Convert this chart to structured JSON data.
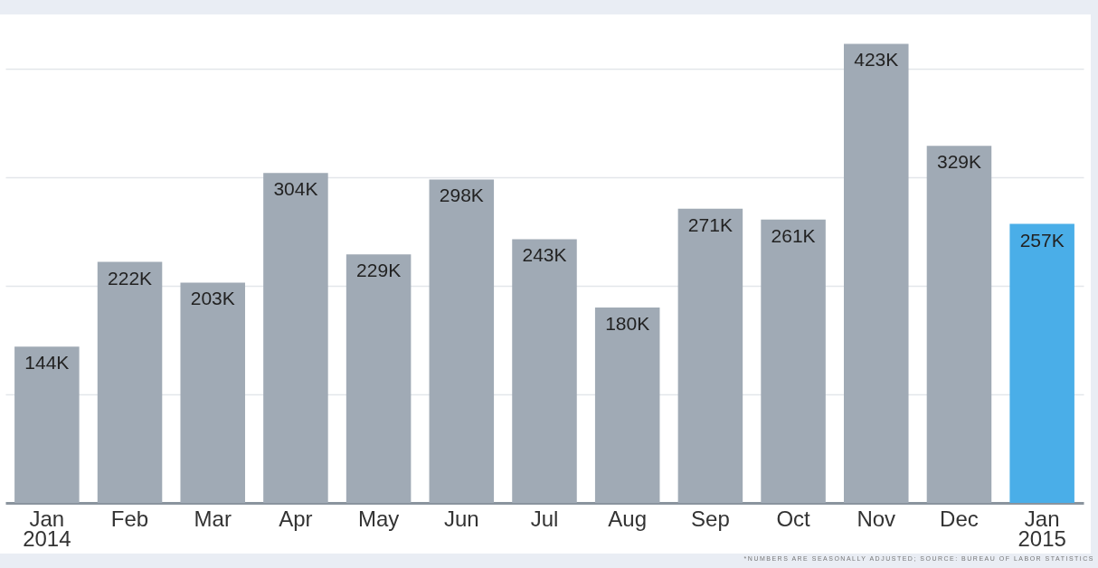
{
  "chart_data": {
    "type": "bar",
    "categories": [
      "Jan\n2014",
      "Feb",
      "Mar",
      "Apr",
      "May",
      "Jun",
      "Jul",
      "Aug",
      "Sep",
      "Oct",
      "Nov",
      "Dec",
      "Jan\n2015"
    ],
    "values": [
      144,
      222,
      203,
      304,
      229,
      298,
      243,
      180,
      271,
      261,
      423,
      329,
      257
    ],
    "value_labels": [
      "144K",
      "222K",
      "203K",
      "304K",
      "229K",
      "298K",
      "243K",
      "180K",
      "271K",
      "261K",
      "423K",
      "329K",
      "257K"
    ],
    "colors": [
      "#a0aab5",
      "#a0aab5",
      "#a0aab5",
      "#a0aab5",
      "#a0aab5",
      "#a0aab5",
      "#a0aab5",
      "#a0aab5",
      "#a0aab5",
      "#a0aab5",
      "#a0aab5",
      "#a0aab5",
      "#4aaee8"
    ],
    "ylim": [
      0,
      450
    ],
    "yticks": [
      {
        "value": 100,
        "label": null
      },
      {
        "value": 200,
        "label": null
      },
      {
        "value": 300,
        "label": null
      },
      {
        "value": 400,
        "label": null
      }
    ],
    "grid": "y",
    "tick_labels": "x",
    "annotations": [
      "*NUMBERS ARE SEASONALLY ADJUSTED; SOURCE: BUREAU OF LABOR STATISTICS"
    ]
  }
}
